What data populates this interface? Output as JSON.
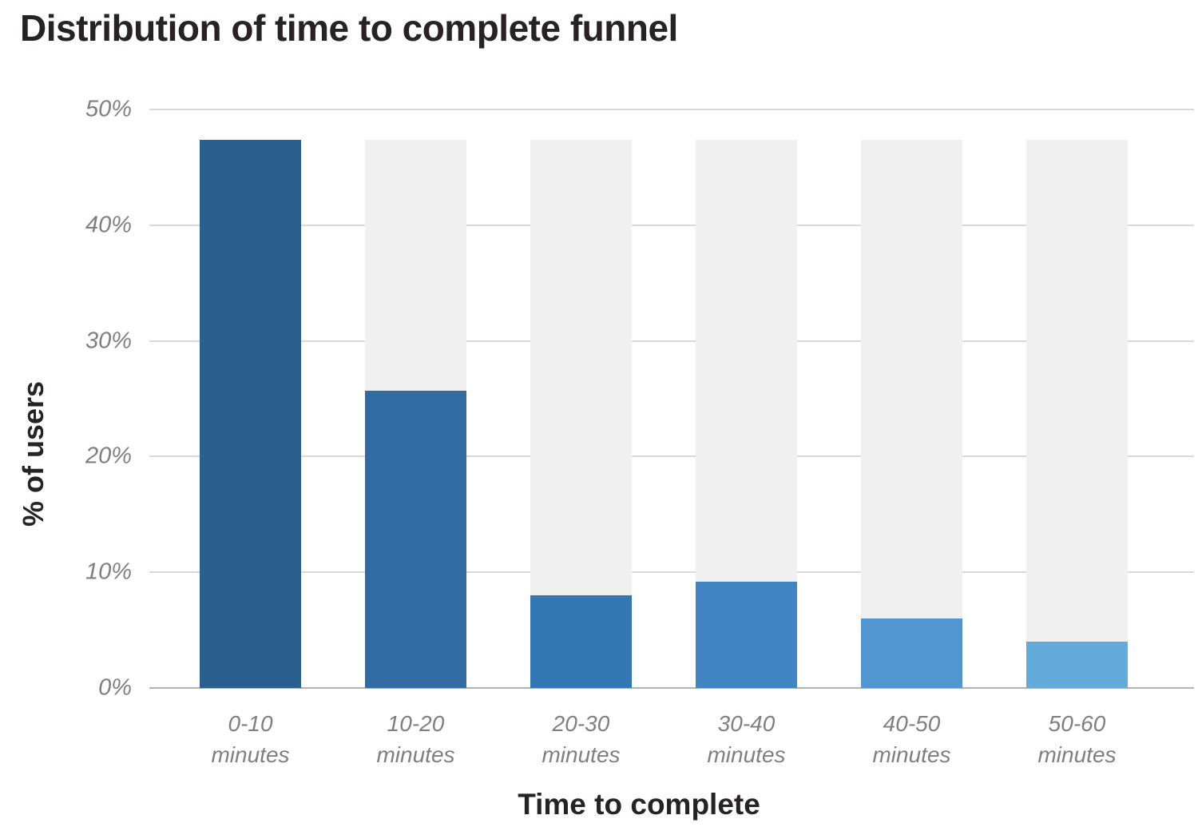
{
  "title": "Distribution of time to complete funnel",
  "chart_data": {
    "type": "bar",
    "title": "Distribution of time to complete funnel",
    "xlabel": "Time to complete",
    "ylabel": "% of users",
    "categories": [
      "0-10 minutes",
      "10-20 minutes",
      "20-30 minutes",
      "30-40 minutes",
      "40-50 minutes",
      "50-60 minutes"
    ],
    "values": [
      47.4,
      25.7,
      8,
      9.2,
      6,
      4
    ],
    "ylim": [
      0,
      50
    ],
    "ytick_values": [
      0,
      10,
      20,
      30,
      40,
      50
    ],
    "ytick_labels": [
      "0%",
      "10%",
      "20%",
      "30%",
      "40%",
      "50%"
    ],
    "grid": true,
    "legend": "none",
    "track_max": 47.4,
    "colors": {
      "bars": [
        "#2b5f8e",
        "#306ba2",
        "#3377b4",
        "#4285c4",
        "#5195d1",
        "#63abdb"
      ],
      "track": "#f0f0f0",
      "gridline": "#d9d9d9",
      "axis_line": "#b2b2b2",
      "tick_text": "#7f7f7f",
      "title_text": "#272324"
    }
  }
}
